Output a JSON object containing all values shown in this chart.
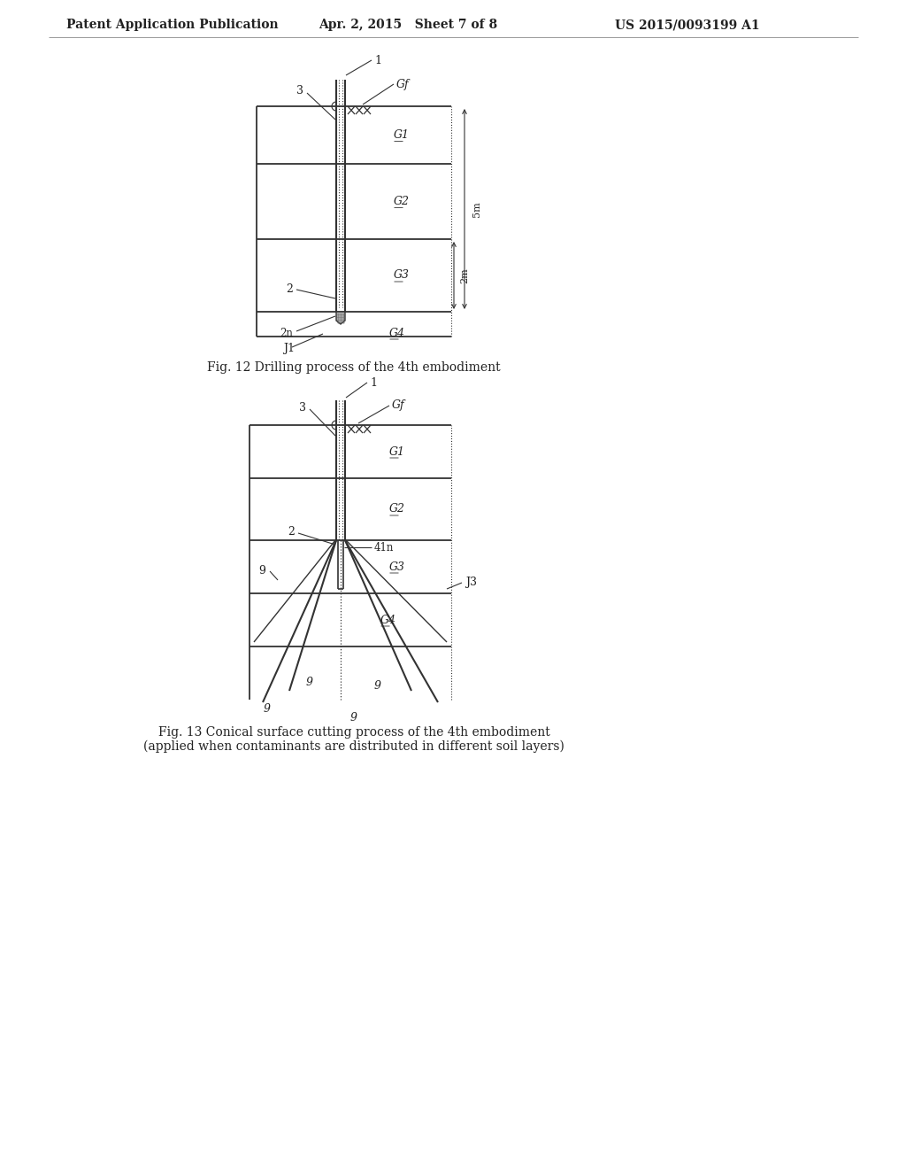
{
  "bg_color": "#ffffff",
  "header_text": "Patent Application Publication",
  "header_date": "Apr. 2, 2015   Sheet 7 of 8",
  "header_patent": "US 2015/0093199 A1",
  "fig12_caption": "Fig. 12 Drilling process of the 4th embodiment",
  "fig13_caption_line1": "Fig. 13 Conical surface cutting process of the 4th embodiment",
  "fig13_caption_line2": "(applied when contaminants are distributed in different soil layers)",
  "line_color": "#333333",
  "text_color": "#222222"
}
